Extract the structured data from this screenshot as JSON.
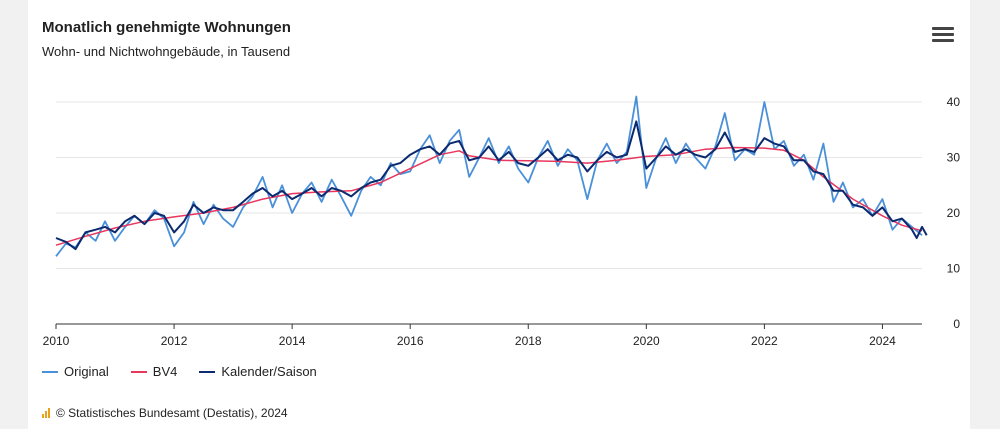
{
  "title": "Monatlich genehmigte Wohnungen",
  "subtitle": "Wohn- und Nichtwohngebäude, in Tausend",
  "footer": "© Statistisches Bundesamt (Destatis), 2024",
  "menu_icon": "hamburger-menu-icon",
  "chart_data": {
    "type": "line",
    "title": "Monatlich genehmigte Wohnungen",
    "subtitle": "Wohn- und Nichtwohngebäude, in Tausend",
    "xlim": [
      2010.0,
      2024.67
    ],
    "ylim": [
      0,
      40
    ],
    "x_ticks": [
      "2010",
      "2012",
      "2014",
      "2016",
      "2018",
      "2020",
      "2022",
      "2024"
    ],
    "y_ticks": [
      "0",
      "10",
      "20",
      "30",
      "40"
    ],
    "legend_position": "bottom-left",
    "grid": "horizontal",
    "series": [
      {
        "name": "Original",
        "color": "#4a90d9",
        "points": [
          [
            2010.0,
            12.2
          ],
          [
            2010.17,
            14.5
          ],
          [
            2010.33,
            13.8
          ],
          [
            2010.5,
            16.5
          ],
          [
            2010.67,
            15.0
          ],
          [
            2010.83,
            18.5
          ],
          [
            2011.0,
            15.0
          ],
          [
            2011.17,
            17.5
          ],
          [
            2011.33,
            19.5
          ],
          [
            2011.5,
            18.0
          ],
          [
            2011.67,
            20.5
          ],
          [
            2011.83,
            19.0
          ],
          [
            2012.0,
            14.0
          ],
          [
            2012.17,
            16.5
          ],
          [
            2012.33,
            22.0
          ],
          [
            2012.5,
            18.0
          ],
          [
            2012.67,
            21.5
          ],
          [
            2012.83,
            19.0
          ],
          [
            2013.0,
            17.5
          ],
          [
            2013.17,
            21.0
          ],
          [
            2013.33,
            23.0
          ],
          [
            2013.5,
            26.5
          ],
          [
            2013.67,
            21.0
          ],
          [
            2013.83,
            25.0
          ],
          [
            2014.0,
            20.0
          ],
          [
            2014.17,
            23.5
          ],
          [
            2014.33,
            25.5
          ],
          [
            2014.5,
            22.0
          ],
          [
            2014.67,
            26.0
          ],
          [
            2014.83,
            23.0
          ],
          [
            2015.0,
            19.5
          ],
          [
            2015.17,
            24.0
          ],
          [
            2015.33,
            26.5
          ],
          [
            2015.5,
            25.0
          ],
          [
            2015.67,
            29.0
          ],
          [
            2015.83,
            27.0
          ],
          [
            2016.0,
            27.5
          ],
          [
            2016.17,
            31.5
          ],
          [
            2016.33,
            34.0
          ],
          [
            2016.5,
            29.0
          ],
          [
            2016.67,
            33.0
          ],
          [
            2016.83,
            35.0
          ],
          [
            2017.0,
            26.5
          ],
          [
            2017.17,
            30.0
          ],
          [
            2017.33,
            33.5
          ],
          [
            2017.5,
            29.0
          ],
          [
            2017.67,
            32.0
          ],
          [
            2017.83,
            28.0
          ],
          [
            2018.0,
            25.5
          ],
          [
            2018.17,
            30.0
          ],
          [
            2018.33,
            33.0
          ],
          [
            2018.5,
            28.5
          ],
          [
            2018.67,
            31.5
          ],
          [
            2018.83,
            29.5
          ],
          [
            2019.0,
            22.5
          ],
          [
            2019.17,
            29.5
          ],
          [
            2019.33,
            32.5
          ],
          [
            2019.5,
            29.0
          ],
          [
            2019.67,
            31.0
          ],
          [
            2019.83,
            41.0
          ],
          [
            2020.0,
            24.5
          ],
          [
            2020.17,
            30.0
          ],
          [
            2020.33,
            33.5
          ],
          [
            2020.5,
            29.0
          ],
          [
            2020.67,
            32.5
          ],
          [
            2020.83,
            30.0
          ],
          [
            2021.0,
            28.0
          ],
          [
            2021.17,
            32.0
          ],
          [
            2021.33,
            38.0
          ],
          [
            2021.5,
            29.5
          ],
          [
            2021.67,
            31.5
          ],
          [
            2021.83,
            30.5
          ],
          [
            2022.0,
            40.0
          ],
          [
            2022.17,
            31.5
          ],
          [
            2022.33,
            33.0
          ],
          [
            2022.5,
            28.5
          ],
          [
            2022.67,
            30.5
          ],
          [
            2022.83,
            26.0
          ],
          [
            2023.0,
            32.5
          ],
          [
            2023.17,
            22.0
          ],
          [
            2023.33,
            25.5
          ],
          [
            2023.5,
            21.0
          ],
          [
            2023.67,
            22.5
          ],
          [
            2023.83,
            19.5
          ],
          [
            2024.0,
            22.5
          ],
          [
            2024.17,
            17.0
          ],
          [
            2024.33,
            19.0
          ],
          [
            2024.5,
            17.5
          ],
          [
            2024.67,
            16.0
          ]
        ]
      },
      {
        "name": "BV4",
        "color": "#e8365d",
        "points": [
          [
            2010.0,
            14.2
          ],
          [
            2010.5,
            15.8
          ],
          [
            2011.0,
            17.3
          ],
          [
            2011.5,
            18.5
          ],
          [
            2012.0,
            19.3
          ],
          [
            2012.5,
            20.0
          ],
          [
            2013.0,
            21.0
          ],
          [
            2013.5,
            22.5
          ],
          [
            2014.0,
            23.5
          ],
          [
            2014.5,
            23.8
          ],
          [
            2015.0,
            24.0
          ],
          [
            2015.5,
            25.5
          ],
          [
            2016.0,
            28.0
          ],
          [
            2016.5,
            30.5
          ],
          [
            2016.83,
            31.2
          ],
          [
            2017.0,
            30.3
          ],
          [
            2017.5,
            29.5
          ],
          [
            2018.0,
            29.4
          ],
          [
            2018.5,
            29.3
          ],
          [
            2019.0,
            29.0
          ],
          [
            2019.5,
            29.5
          ],
          [
            2020.0,
            30.2
          ],
          [
            2020.5,
            30.5
          ],
          [
            2021.0,
            31.5
          ],
          [
            2021.5,
            31.8
          ],
          [
            2022.0,
            31.7
          ],
          [
            2022.33,
            31.3
          ],
          [
            2022.67,
            29.5
          ],
          [
            2023.0,
            26.5
          ],
          [
            2023.5,
            22.5
          ],
          [
            2024.0,
            19.5
          ],
          [
            2024.33,
            17.8
          ],
          [
            2024.67,
            16.8
          ]
        ]
      },
      {
        "name": "Kalender/Saison",
        "color": "#0b2a6f",
        "points": [
          [
            2010.0,
            15.5
          ],
          [
            2010.17,
            14.8
          ],
          [
            2010.33,
            13.5
          ],
          [
            2010.5,
            16.5
          ],
          [
            2010.67,
            17.0
          ],
          [
            2010.83,
            17.5
          ],
          [
            2011.0,
            16.5
          ],
          [
            2011.17,
            18.5
          ],
          [
            2011.33,
            19.5
          ],
          [
            2011.5,
            18.0
          ],
          [
            2011.67,
            20.0
          ],
          [
            2011.83,
            19.5
          ],
          [
            2012.0,
            16.5
          ],
          [
            2012.17,
            18.5
          ],
          [
            2012.33,
            21.5
          ],
          [
            2012.5,
            20.0
          ],
          [
            2012.67,
            21.0
          ],
          [
            2012.83,
            20.5
          ],
          [
            2013.0,
            20.5
          ],
          [
            2013.17,
            22.0
          ],
          [
            2013.33,
            23.5
          ],
          [
            2013.5,
            24.5
          ],
          [
            2013.67,
            23.0
          ],
          [
            2013.83,
            24.0
          ],
          [
            2014.0,
            22.5
          ],
          [
            2014.17,
            23.5
          ],
          [
            2014.33,
            24.5
          ],
          [
            2014.5,
            23.0
          ],
          [
            2014.67,
            24.5
          ],
          [
            2014.83,
            24.0
          ],
          [
            2015.0,
            23.0
          ],
          [
            2015.17,
            24.5
          ],
          [
            2015.33,
            25.5
          ],
          [
            2015.5,
            26.0
          ],
          [
            2015.67,
            28.5
          ],
          [
            2015.83,
            29.0
          ],
          [
            2016.0,
            30.5
          ],
          [
            2016.17,
            31.5
          ],
          [
            2016.33,
            32.0
          ],
          [
            2016.5,
            30.5
          ],
          [
            2016.67,
            32.5
          ],
          [
            2016.83,
            33.0
          ],
          [
            2017.0,
            29.5
          ],
          [
            2017.17,
            30.0
          ],
          [
            2017.33,
            32.0
          ],
          [
            2017.5,
            29.5
          ],
          [
            2017.67,
            31.0
          ],
          [
            2017.83,
            29.0
          ],
          [
            2018.0,
            28.5
          ],
          [
            2018.17,
            30.0
          ],
          [
            2018.33,
            31.5
          ],
          [
            2018.5,
            29.5
          ],
          [
            2018.67,
            30.5
          ],
          [
            2018.83,
            30.0
          ],
          [
            2019.0,
            27.5
          ],
          [
            2019.17,
            29.5
          ],
          [
            2019.33,
            31.0
          ],
          [
            2019.5,
            30.0
          ],
          [
            2019.67,
            30.5
          ],
          [
            2019.83,
            36.5
          ],
          [
            2020.0,
            28.0
          ],
          [
            2020.17,
            30.0
          ],
          [
            2020.33,
            32.0
          ],
          [
            2020.5,
            30.5
          ],
          [
            2020.67,
            31.5
          ],
          [
            2020.83,
            30.5
          ],
          [
            2021.0,
            30.0
          ],
          [
            2021.17,
            31.5
          ],
          [
            2021.33,
            34.5
          ],
          [
            2021.5,
            31.0
          ],
          [
            2021.67,
            31.5
          ],
          [
            2021.83,
            31.0
          ],
          [
            2022.0,
            33.5
          ],
          [
            2022.17,
            32.5
          ],
          [
            2022.33,
            32.0
          ],
          [
            2022.5,
            29.5
          ],
          [
            2022.67,
            29.5
          ],
          [
            2022.83,
            27.5
          ],
          [
            2023.0,
            27.0
          ],
          [
            2023.17,
            24.0
          ],
          [
            2023.33,
            24.0
          ],
          [
            2023.5,
            21.5
          ],
          [
            2023.67,
            21.0
          ],
          [
            2023.83,
            19.5
          ],
          [
            2024.0,
            21.0
          ],
          [
            2024.17,
            18.5
          ],
          [
            2024.33,
            19.0
          ],
          [
            2024.5,
            17.0
          ],
          [
            2024.58,
            15.5
          ],
          [
            2024.67,
            17.5
          ],
          [
            2024.75,
            16.0
          ]
        ]
      }
    ]
  }
}
